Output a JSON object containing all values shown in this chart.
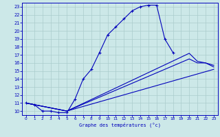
{
  "xlabel": "Graphe des températures (°c)",
  "bg_color": "#cce8e8",
  "line_color": "#0000bb",
  "grid_color": "#aacccc",
  "xlim": [
    -0.5,
    23.5
  ],
  "ylim": [
    9.5,
    23.5
  ],
  "xticks": [
    0,
    1,
    2,
    3,
    4,
    5,
    6,
    7,
    8,
    9,
    10,
    11,
    12,
    13,
    14,
    15,
    16,
    17,
    18,
    19,
    20,
    21,
    22,
    23
  ],
  "yticks": [
    10,
    11,
    12,
    13,
    14,
    15,
    16,
    17,
    18,
    19,
    20,
    21,
    22,
    23
  ],
  "main_x": [
    0,
    1,
    2,
    3,
    4,
    5,
    6,
    7,
    8,
    9,
    10,
    11,
    12,
    13,
    14,
    15,
    16,
    17,
    18
  ],
  "main_y": [
    11.0,
    10.8,
    10.0,
    10.0,
    9.8,
    9.8,
    11.5,
    14.0,
    15.2,
    17.3,
    19.5,
    20.5,
    21.5,
    22.5,
    23.0,
    23.2,
    23.2,
    19.0,
    17.3
  ],
  "line2_x": [
    0,
    5,
    23
  ],
  "line2_y": [
    11.0,
    10.0,
    15.2
  ],
  "line3_x": [
    0,
    5,
    20,
    21,
    22,
    23
  ],
  "line3_y": [
    11.0,
    10.0,
    16.5,
    16.0,
    16.0,
    15.7
  ],
  "line4_x": [
    0,
    5,
    20,
    21,
    22,
    23
  ],
  "line4_y": [
    11.0,
    10.0,
    17.2,
    16.2,
    16.0,
    15.5
  ]
}
